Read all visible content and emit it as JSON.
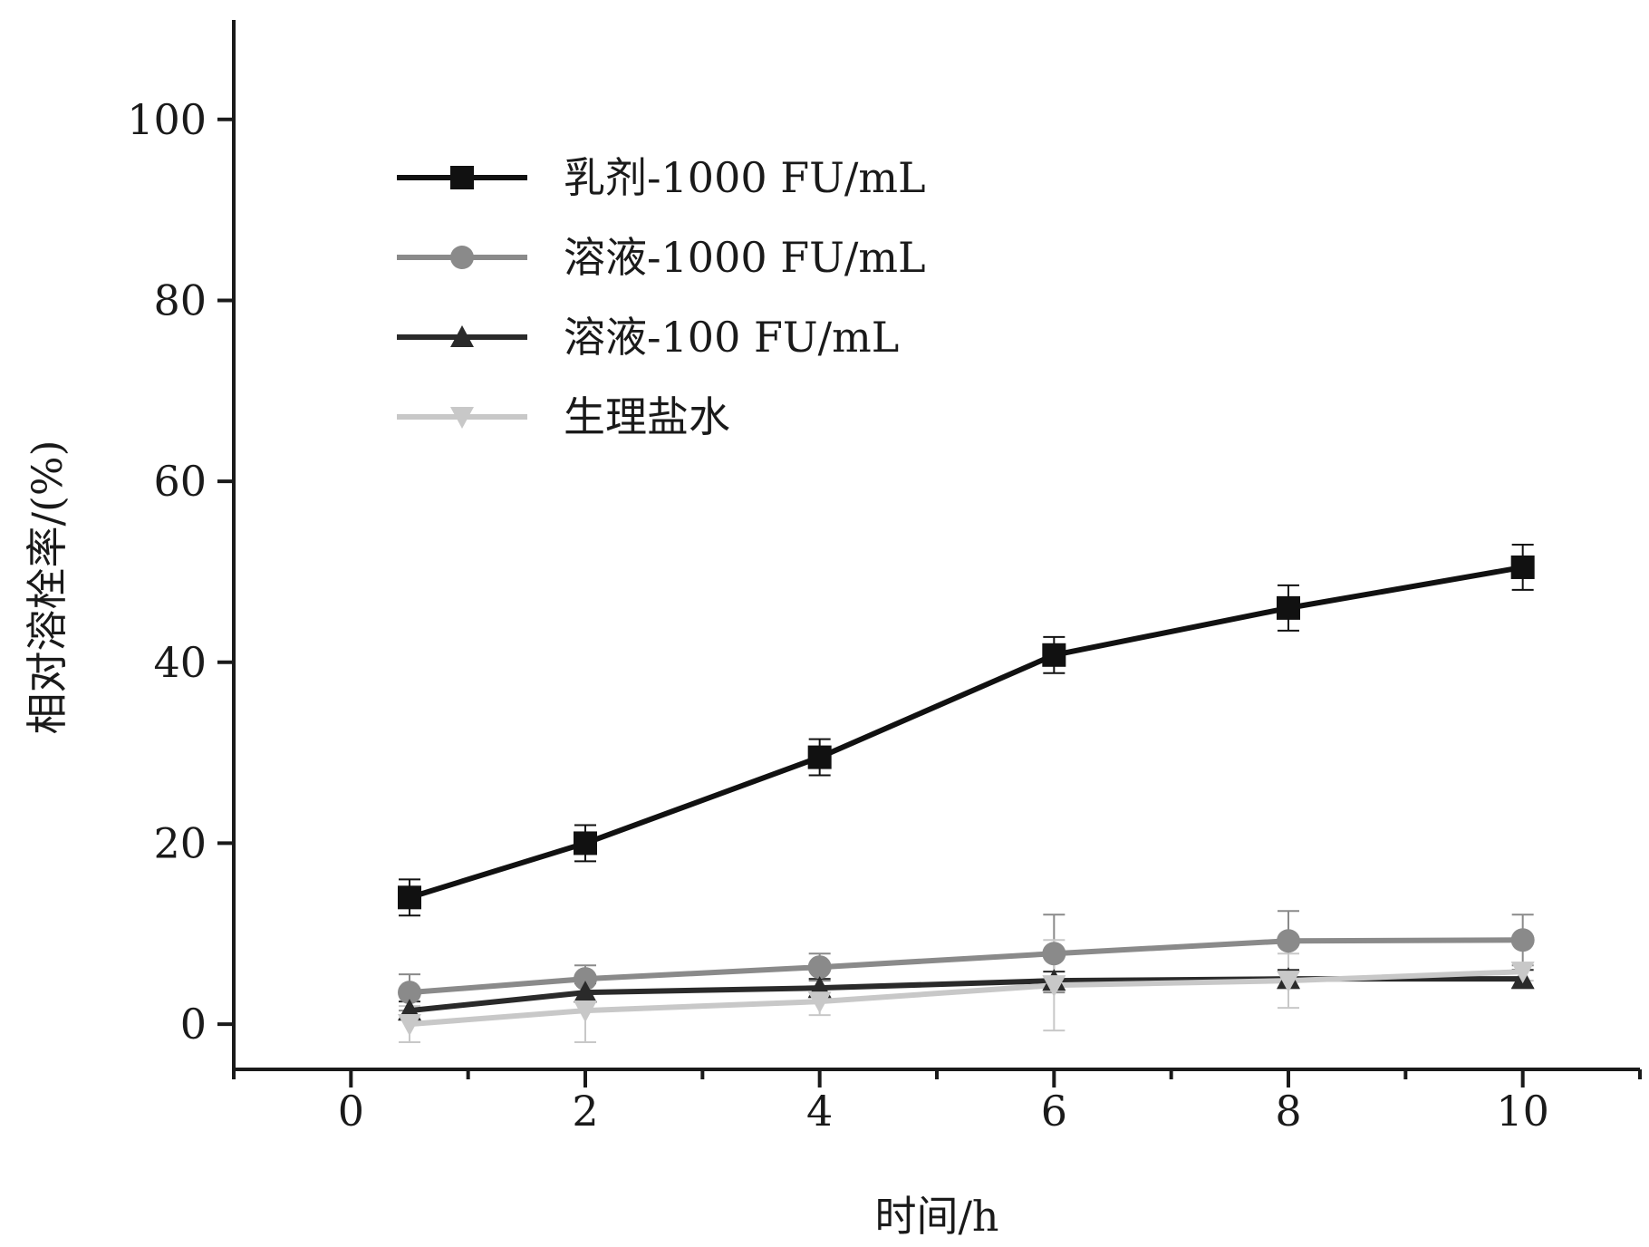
{
  "chart_data": {
    "type": "line",
    "xlabel": "时间/h",
    "ylabel": "相对溶栓率/(%)",
    "xlim": [
      -1,
      11
    ],
    "ylim": [
      -5,
      111
    ],
    "xticks": [
      0,
      2,
      4,
      6,
      8,
      10
    ],
    "yticks": [
      0,
      20,
      40,
      60,
      80,
      100
    ],
    "x_minor_ticks": [
      -1,
      1,
      3,
      5,
      7,
      9,
      11
    ],
    "legend_position": "top-left",
    "grid": false,
    "x": [
      0.5,
      2,
      4,
      6,
      8,
      10
    ],
    "series": [
      {
        "name": "乳剂-1000 FU/mL",
        "marker": "square",
        "color": "#111111",
        "values": [
          14,
          20,
          29.5,
          40.8,
          46,
          50.5
        ],
        "errors": [
          2,
          2,
          2,
          2,
          2.5,
          2.5
        ]
      },
      {
        "name": "溶液-1000 FU/mL",
        "marker": "circle",
        "color": "#8a8a8a",
        "values": [
          3.5,
          5,
          6.3,
          7.8,
          9.2,
          9.3
        ],
        "errors": [
          2,
          1.5,
          1.5,
          4.3,
          3.3,
          2.8
        ]
      },
      {
        "name": "溶液-100 FU/mL",
        "marker": "triangle-up",
        "color": "#2a2a2a",
        "values": [
          1.5,
          3.5,
          4,
          4.8,
          5,
          5
        ],
        "errors": [
          1,
          1,
          1,
          1,
          1,
          1
        ]
      },
      {
        "name": "生理盐水",
        "marker": "triangle-down",
        "color": "#c8c8c8",
        "values": [
          0,
          1.5,
          2.5,
          4.3,
          4.8,
          5.8
        ],
        "errors": [
          2,
          3.5,
          1.5,
          5,
          3,
          1
        ]
      }
    ]
  }
}
